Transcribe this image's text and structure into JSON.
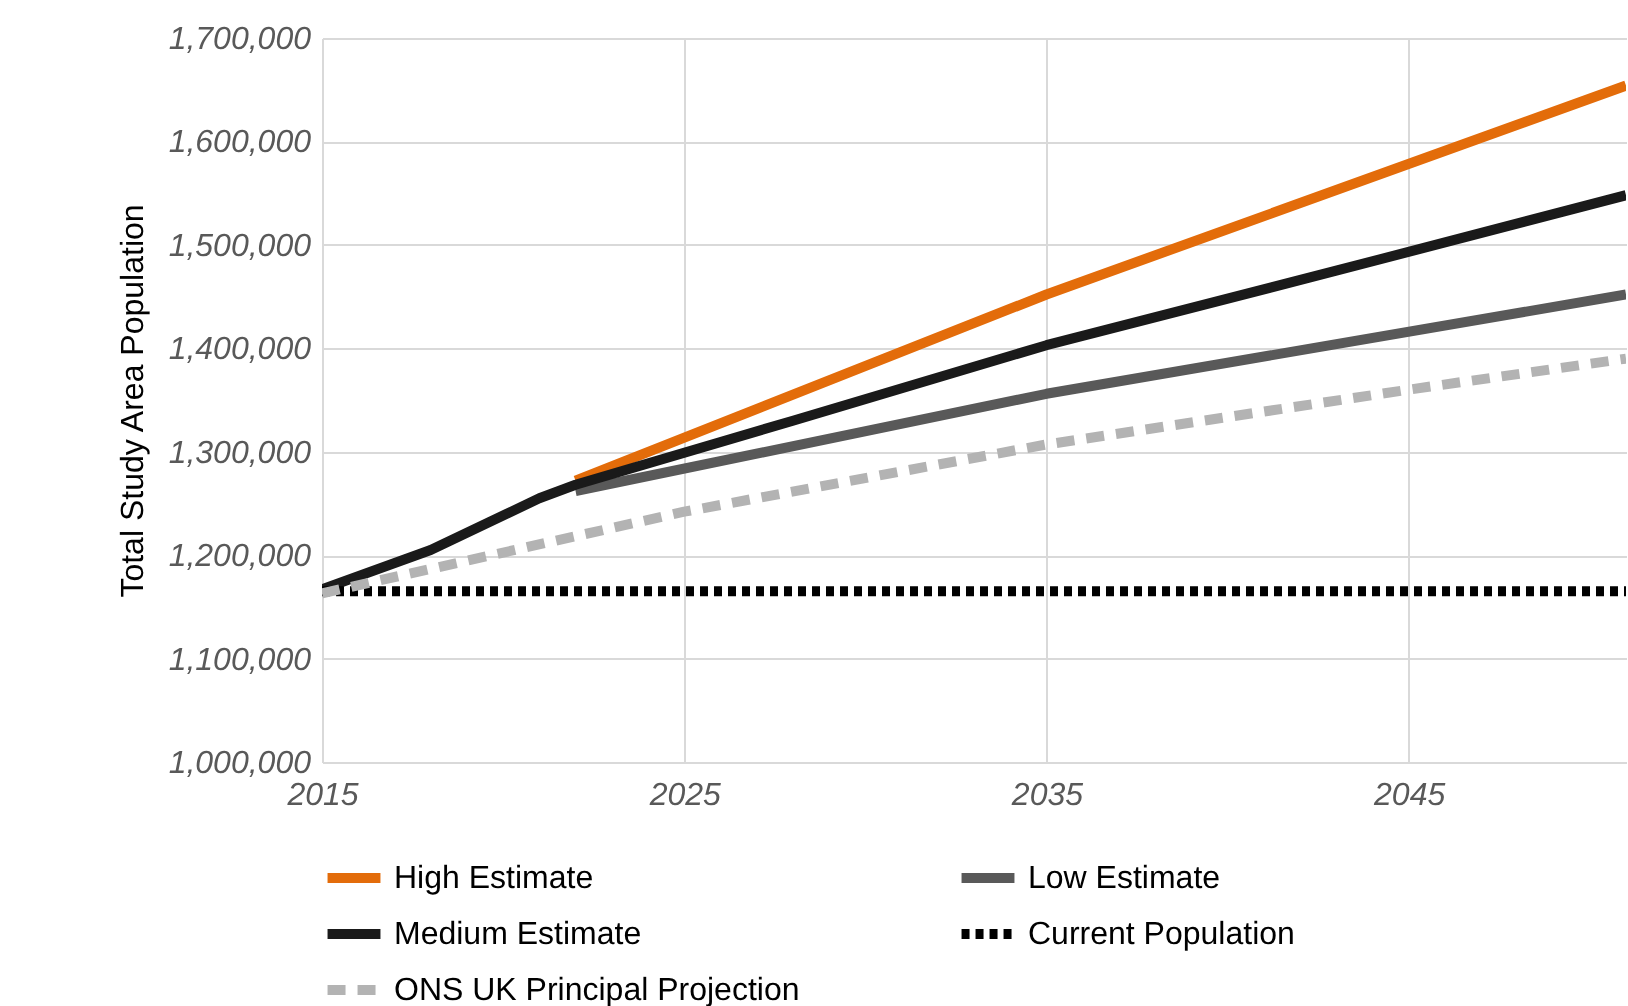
{
  "chart_data": {
    "type": "line",
    "ylabel": "Total Study Area Population",
    "xlim": [
      2015,
      2051
    ],
    "xticks": [
      2015,
      2025,
      2035,
      2045
    ],
    "ylim": [
      1000000,
      1700000
    ],
    "yticks": [
      {
        "value": 1000000,
        "label": "1,000,000"
      },
      {
        "value": 1100000,
        "label": "1,100,000"
      },
      {
        "value": 1200000,
        "label": "1,200,000"
      },
      {
        "value": 1300000,
        "label": "1,300,000"
      },
      {
        "value": 1400000,
        "label": "1,400,000"
      },
      {
        "value": 1500000,
        "label": "1,500,000"
      },
      {
        "value": 1600000,
        "label": "1,600,000"
      },
      {
        "value": 1700000,
        "label": "1,700,000"
      }
    ],
    "grid": true,
    "legend": "bottom",
    "marker": "none",
    "series": [
      {
        "name": "High Estimate",
        "color": "#e36c0a",
        "line_style": "solid",
        "x": [
          2022,
          2035,
          2051
        ],
        "values": [
          1272000,
          1452000,
          1654000
        ]
      },
      {
        "name": "Low Estimate",
        "color": "#595959",
        "line_style": "solid",
        "x": [
          2022,
          2035,
          2051
        ],
        "values": [
          1262000,
          1356000,
          1452000
        ]
      },
      {
        "name": "Medium Estimate",
        "color": "#1a1a1a",
        "line_style": "solid",
        "x": [
          2015,
          2018,
          2021,
          2022,
          2028,
          2035,
          2043,
          2051
        ],
        "values": [
          1167000,
          1205000,
          1255000,
          1268000,
          1330000,
          1403000,
          1475000,
          1548000
        ]
      },
      {
        "name": "Current Population",
        "color": "#000000",
        "line_style": "dashed",
        "x": [
          2015,
          2051
        ],
        "values": [
          1165000,
          1165000
        ]
      },
      {
        "name": "ONS UK Principal Projection",
        "color": "#b3b3b3",
        "line_style": "dashed",
        "x": [
          2015,
          2025,
          2035,
          2045,
          2051
        ],
        "values": [
          1163000,
          1242000,
          1307000,
          1360000,
          1390000
        ]
      }
    ]
  }
}
